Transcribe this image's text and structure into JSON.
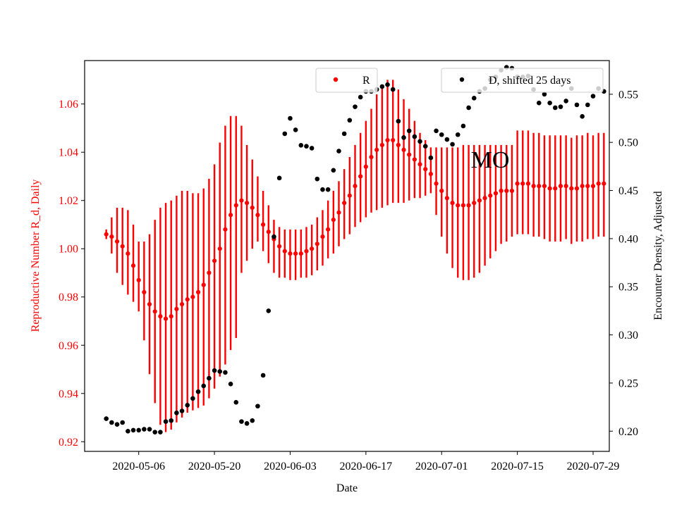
{
  "chart_data": {
    "type": "scatter",
    "annotation": "MO",
    "xlabel": "Date",
    "ylabel_left": "Reproductive Number R_d, Daily",
    "ylabel_right": "Encounter Density, Adjusted",
    "x_tick_labels": [
      "2020-05-06",
      "2020-05-20",
      "2020-06-03",
      "2020-06-17",
      "2020-07-01",
      "2020-07-15",
      "2020-07-29"
    ],
    "y_left_ticks": [
      "0.92",
      "0.94",
      "0.96",
      "0.98",
      "1.00",
      "1.02",
      "1.04",
      "1.06"
    ],
    "y_right_ticks": [
      "0.20",
      "0.25",
      "0.30",
      "0.35",
      "0.40",
      "0.45",
      "0.50",
      "0.55"
    ],
    "ylim_left": [
      0.916,
      1.078
    ],
    "ylim_right": [
      0.179,
      0.585
    ],
    "xlim": [
      "2020-04-26",
      "2020-08-01"
    ],
    "grid": false,
    "legend_placement": "top-center / top-right",
    "colors": {
      "R": "#ff0000",
      "D": "#000000"
    },
    "series": [
      {
        "name": "R",
        "axis": "left",
        "x": [
          "2020-04-30",
          "2020-05-01",
          "2020-05-02",
          "2020-05-03",
          "2020-05-04",
          "2020-05-05",
          "2020-05-06",
          "2020-05-07",
          "2020-05-08",
          "2020-05-09",
          "2020-05-10",
          "2020-05-11",
          "2020-05-12",
          "2020-05-13",
          "2020-05-14",
          "2020-05-15",
          "2020-05-16",
          "2020-05-17",
          "2020-05-18",
          "2020-05-19",
          "2020-05-20",
          "2020-05-21",
          "2020-05-22",
          "2020-05-23",
          "2020-05-24",
          "2020-05-25",
          "2020-05-26",
          "2020-05-27",
          "2020-05-28",
          "2020-05-29",
          "2020-05-30",
          "2020-05-31",
          "2020-06-01",
          "2020-06-02",
          "2020-06-03",
          "2020-06-04",
          "2020-06-05",
          "2020-06-06",
          "2020-06-07",
          "2020-06-08",
          "2020-06-09",
          "2020-06-10",
          "2020-06-11",
          "2020-06-12",
          "2020-06-13",
          "2020-06-14",
          "2020-06-15",
          "2020-06-16",
          "2020-06-17",
          "2020-06-18",
          "2020-06-19",
          "2020-06-20",
          "2020-06-21",
          "2020-06-22",
          "2020-06-23",
          "2020-06-24",
          "2020-06-25",
          "2020-06-26",
          "2020-06-27",
          "2020-06-28",
          "2020-06-29",
          "2020-06-30",
          "2020-07-01",
          "2020-07-02",
          "2020-07-03",
          "2020-07-04",
          "2020-07-05",
          "2020-07-06",
          "2020-07-07",
          "2020-07-08",
          "2020-07-09",
          "2020-07-10",
          "2020-07-11",
          "2020-07-12",
          "2020-07-13",
          "2020-07-14",
          "2020-07-15",
          "2020-07-16",
          "2020-07-17",
          "2020-07-18",
          "2020-07-19",
          "2020-07-20",
          "2020-07-21",
          "2020-07-22",
          "2020-07-23",
          "2020-07-24",
          "2020-07-25",
          "2020-07-26",
          "2020-07-27",
          "2020-07-28",
          "2020-07-29",
          "2020-07-30",
          "2020-07-31"
        ],
        "y": [
          1.006,
          1.005,
          1.003,
          1.001,
          0.998,
          0.993,
          0.987,
          0.982,
          0.977,
          0.974,
          0.972,
          0.971,
          0.972,
          0.975,
          0.977,
          0.979,
          0.98,
          0.982,
          0.985,
          0.99,
          0.995,
          1.0,
          1.008,
          1.014,
          1.018,
          1.02,
          1.019,
          1.017,
          1.014,
          1.01,
          1.007,
          1.004,
          1.001,
          0.999,
          0.998,
          0.998,
          0.998,
          0.999,
          1.0,
          1.002,
          1.005,
          1.008,
          1.012,
          1.015,
          1.019,
          1.022,
          1.026,
          1.03,
          1.034,
          1.038,
          1.041,
          1.043,
          1.045,
          1.045,
          1.043,
          1.041,
          1.039,
          1.037,
          1.035,
          1.033,
          1.031,
          1.027,
          1.024,
          1.021,
          1.019,
          1.018,
          1.018,
          1.018,
          1.019,
          1.02,
          1.021,
          1.022,
          1.023,
          1.024,
          1.024,
          1.024,
          1.027,
          1.027,
          1.027,
          1.026,
          1.026,
          1.026,
          1.025,
          1.025,
          1.026,
          1.026,
          1.025,
          1.025,
          1.026,
          1.026,
          1.026,
          1.027,
          1.027
        ],
        "err_low": [
          1.004,
          0.998,
          0.99,
          0.985,
          0.981,
          0.978,
          0.974,
          0.962,
          0.948,
          0.936,
          0.927,
          0.924,
          0.925,
          0.928,
          0.93,
          0.932,
          0.933,
          0.934,
          0.935,
          0.938,
          0.942,
          0.947,
          0.952,
          0.958,
          0.963,
          0.99,
          0.995,
          1.0,
          1.003,
          0.999,
          0.994,
          0.99,
          0.988,
          0.988,
          0.987,
          0.987,
          0.988,
          0.988,
          0.989,
          0.991,
          0.993,
          0.996,
          0.998,
          1.001,
          1.004,
          1.006,
          1.009,
          1.011,
          1.013,
          1.015,
          1.016,
          1.017,
          1.018,
          1.019,
          1.019,
          1.019,
          1.02,
          1.021,
          1.021,
          1.022,
          1.023,
          1.014,
          1.005,
          0.998,
          0.992,
          0.988,
          0.987,
          0.987,
          0.988,
          0.99,
          0.993,
          0.996,
          0.999,
          1.002,
          1.003,
          1.005,
          1.006,
          1.006,
          1.006,
          1.005,
          1.005,
          1.004,
          1.003,
          1.003,
          1.003,
          1.004,
          1.002,
          1.003,
          1.003,
          1.004,
          1.004,
          1.005,
          1.005
        ],
        "err_high": [
          1.008,
          1.013,
          1.017,
          1.017,
          1.016,
          1.01,
          1.003,
          1.003,
          1.006,
          1.012,
          1.017,
          1.019,
          1.02,
          1.022,
          1.024,
          1.024,
          1.023,
          1.023,
          1.025,
          1.029,
          1.035,
          1.044,
          1.051,
          1.055,
          1.055,
          1.051,
          1.043,
          1.037,
          1.03,
          1.024,
          1.018,
          1.012,
          1.009,
          1.008,
          1.008,
          1.008,
          1.008,
          1.009,
          1.01,
          1.013,
          1.016,
          1.02,
          1.024,
          1.028,
          1.033,
          1.038,
          1.043,
          1.048,
          1.053,
          1.058,
          1.064,
          1.068,
          1.07,
          1.07,
          1.066,
          1.062,
          1.058,
          1.053,
          1.048,
          1.045,
          1.042,
          1.042,
          1.042,
          1.042,
          1.042,
          1.042,
          1.043,
          1.043,
          1.043,
          1.043,
          1.043,
          1.043,
          1.043,
          1.043,
          1.043,
          1.043,
          1.049,
          1.049,
          1.049,
          1.048,
          1.048,
          1.047,
          1.047,
          1.047,
          1.047,
          1.047,
          1.046,
          1.047,
          1.047,
          1.048,
          1.047,
          1.048,
          1.048
        ]
      },
      {
        "name": "D, shifted 25 days",
        "axis": "right",
        "x": [
          "2020-04-30",
          "2020-05-01",
          "2020-05-02",
          "2020-05-03",
          "2020-05-04",
          "2020-05-05",
          "2020-05-06",
          "2020-05-07",
          "2020-05-08",
          "2020-05-09",
          "2020-05-10",
          "2020-05-11",
          "2020-05-12",
          "2020-05-13",
          "2020-05-14",
          "2020-05-15",
          "2020-05-16",
          "2020-05-17",
          "2020-05-18",
          "2020-05-19",
          "2020-05-20",
          "2020-05-21",
          "2020-05-22",
          "2020-05-23",
          "2020-05-24",
          "2020-05-25",
          "2020-05-26",
          "2020-05-27",
          "2020-05-28",
          "2020-05-29",
          "2020-05-30",
          "2020-05-31",
          "2020-06-01",
          "2020-06-02",
          "2020-06-03",
          "2020-06-04",
          "2020-06-05",
          "2020-06-06",
          "2020-06-07",
          "2020-06-08",
          "2020-06-09",
          "2020-06-10",
          "2020-06-11",
          "2020-06-12",
          "2020-06-13",
          "2020-06-14",
          "2020-06-15",
          "2020-06-16",
          "2020-06-17",
          "2020-06-18",
          "2020-06-19",
          "2020-06-20",
          "2020-06-21",
          "2020-06-22",
          "2020-06-23",
          "2020-06-24",
          "2020-06-25",
          "2020-06-26",
          "2020-06-27",
          "2020-06-28",
          "2020-06-29",
          "2020-06-30",
          "2020-07-01",
          "2020-07-02",
          "2020-07-03",
          "2020-07-04",
          "2020-07-05",
          "2020-07-06",
          "2020-07-07",
          "2020-07-08",
          "2020-07-09",
          "2020-07-10",
          "2020-07-11",
          "2020-07-12",
          "2020-07-13",
          "2020-07-14",
          "2020-07-15",
          "2020-07-16",
          "2020-07-17",
          "2020-07-18",
          "2020-07-19",
          "2020-07-20",
          "2020-07-21",
          "2020-07-22",
          "2020-07-23",
          "2020-07-24",
          "2020-07-25",
          "2020-07-26",
          "2020-07-27",
          "2020-07-28",
          "2020-07-29",
          "2020-07-30",
          "2020-07-31"
        ],
        "y": [
          0.213,
          0.209,
          0.207,
          0.209,
          0.2,
          0.201,
          0.201,
          0.202,
          0.202,
          0.199,
          0.199,
          0.21,
          0.211,
          0.219,
          0.221,
          0.227,
          0.234,
          0.241,
          0.247,
          0.255,
          0.263,
          0.262,
          0.261,
          0.249,
          0.23,
          0.21,
          0.208,
          0.211,
          0.226,
          0.258,
          0.325,
          0.402,
          0.463,
          0.509,
          0.525,
          0.513,
          0.497,
          0.496,
          0.494,
          0.462,
          0.451,
          0.451,
          0.471,
          0.491,
          0.509,
          0.523,
          0.537,
          0.547,
          0.553,
          0.553,
          0.555,
          0.558,
          0.56,
          0.555,
          0.522,
          0.505,
          0.512,
          0.506,
          0.501,
          0.496,
          0.484,
          0.512,
          0.508,
          0.503,
          0.498,
          0.508,
          0.517,
          0.536,
          0.546,
          0.553,
          0.556,
          0.565,
          0.568,
          0.575,
          0.578,
          0.577,
          0.568,
          0.568,
          0.569,
          0.555,
          0.541,
          0.55,
          0.541,
          0.536,
          0.537,
          0.543,
          0.556,
          0.539,
          0.527,
          0.539,
          0.548,
          0.556,
          0.553
        ]
      }
    ]
  }
}
